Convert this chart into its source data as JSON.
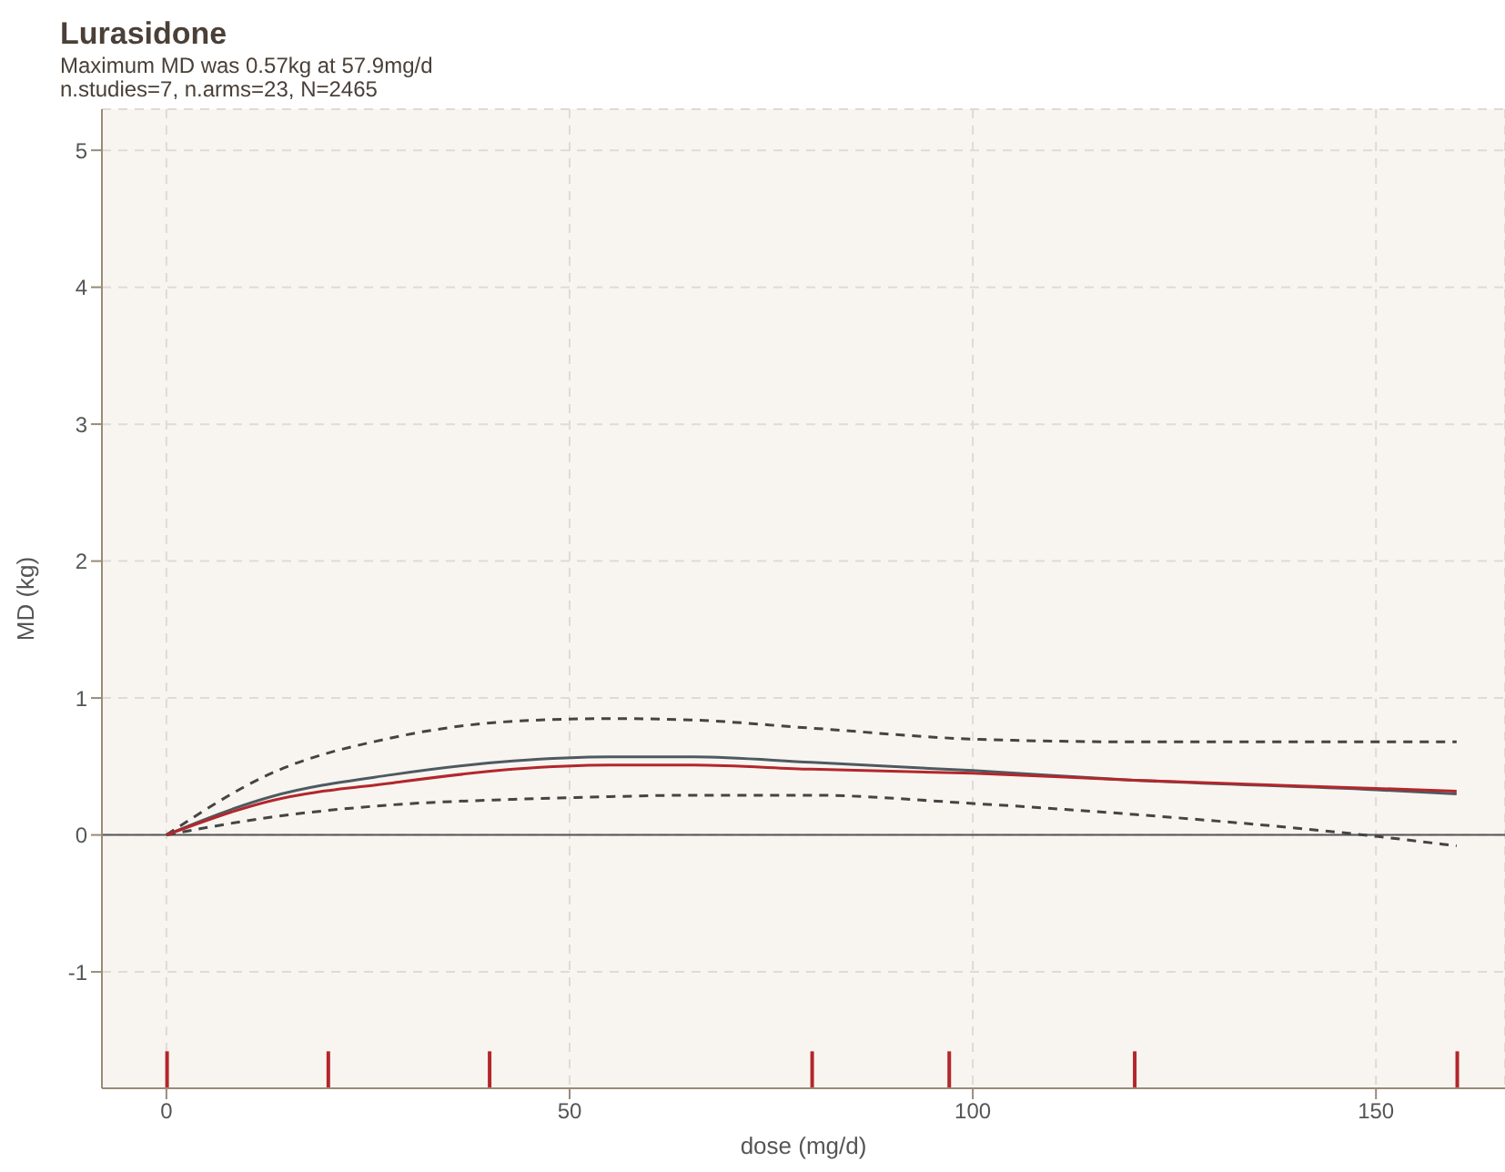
{
  "chart_data": {
    "type": "line",
    "title": "Lurasidone",
    "subtitle": "Maximum MD was 0.57kg at 57.9mg/d\nn.studies=7, n.arms=23, N=2465",
    "xlabel": "dose (mg/d)",
    "ylabel": "MD (kg)",
    "xlim": [
      -8,
      166
    ],
    "ylim": [
      -1.85,
      5.3
    ],
    "xticks": [
      0,
      50,
      100,
      150
    ],
    "yticks": [
      -1,
      0,
      1,
      2,
      3,
      4,
      5
    ],
    "grid": true,
    "ref_lines": [
      {
        "axis": "y",
        "value": 0,
        "color": "#555555",
        "line_style": "solid"
      }
    ],
    "x": [
      0,
      13,
      28,
      43,
      55,
      65,
      80,
      100,
      120,
      150,
      160
    ],
    "series": [
      {
        "color": "#444444",
        "line_style": "dashed",
        "values": [
          0,
          0.45,
          0.71,
          0.83,
          0.85,
          0.84,
          0.78,
          0.7,
          0.68,
          0.68,
          0.68
        ]
      },
      {
        "color": "#444444",
        "line_style": "dashed",
        "values": [
          0,
          0.13,
          0.22,
          0.26,
          0.28,
          0.29,
          0.29,
          0.23,
          0.15,
          -0.01,
          -0.08
        ]
      },
      {
        "color": "#4d5a60",
        "line_style": "solid",
        "values": [
          0,
          0.28,
          0.44,
          0.54,
          0.57,
          0.57,
          0.53,
          0.47,
          0.4,
          0.33,
          0.3
        ]
      },
      {
        "color": "#b3262c",
        "line_style": "solid",
        "values": [
          0,
          0.25,
          0.38,
          0.48,
          0.51,
          0.51,
          0.48,
          0.45,
          0.4,
          0.34,
          0.32
        ]
      },
      {
        "type": "bar",
        "color": "#b3262c",
        "x": [
          0,
          20,
          40,
          80,
          97,
          120,
          160
        ],
        "base": [
          -1.85,
          -1.85,
          -1.85,
          -1.85,
          -1.85,
          -1.85,
          -1.85
        ],
        "values": [
          0.27,
          0.27,
          0.27,
          0.27,
          0.27,
          0.27,
          0.27
        ]
      }
    ]
  }
}
